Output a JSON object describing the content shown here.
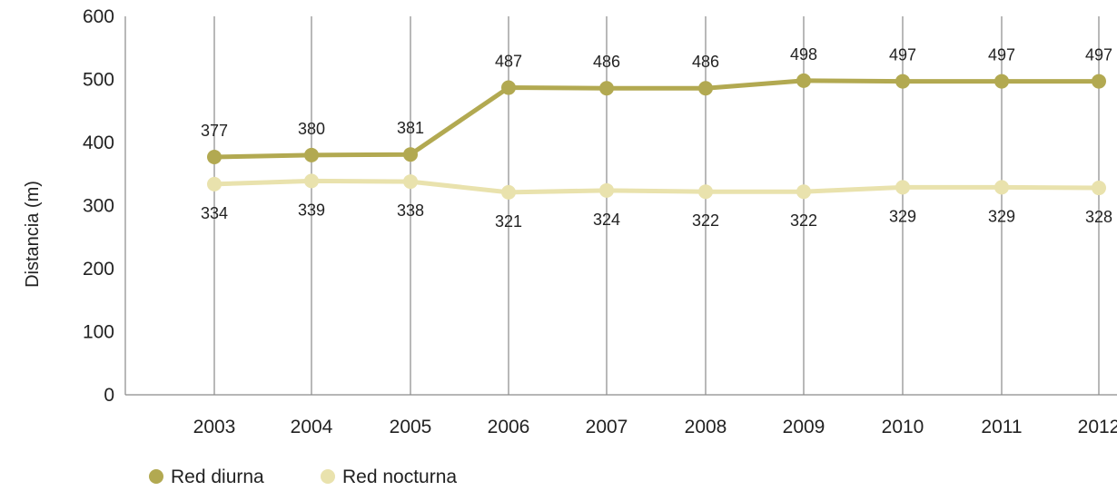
{
  "chart_data": {
    "type": "line",
    "title": "",
    "xlabel": "",
    "ylabel": "Distancia (m)",
    "ylim": [
      0,
      600
    ],
    "yticks": [
      0,
      100,
      200,
      300,
      400,
      500,
      600
    ],
    "categories": [
      "2003",
      "2004",
      "2005",
      "2006",
      "2007",
      "2008",
      "2009",
      "2010",
      "2011",
      "2012"
    ],
    "grid": "vertical",
    "legend_position": "bottom-left",
    "series": [
      {
        "name": "Red diurna",
        "color": "#b2a951",
        "values": [
          377,
          380,
          381,
          487,
          486,
          486,
          498,
          497,
          497,
          497
        ],
        "label_position": "above"
      },
      {
        "name": "Red nocturna",
        "color": "#e9e2ad",
        "values": [
          334,
          339,
          338,
          321,
          324,
          322,
          322,
          329,
          329,
          328
        ],
        "label_position": "below"
      }
    ]
  }
}
